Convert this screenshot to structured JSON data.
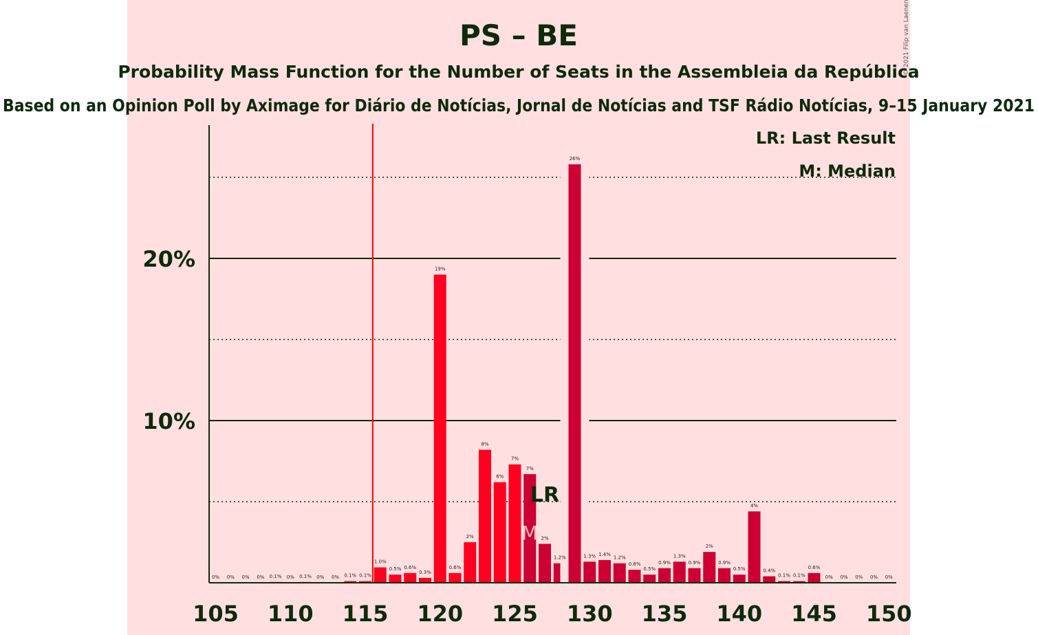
{
  "chart_data": {
    "type": "bar",
    "title": "PS – BE",
    "subtitle": "Probability Mass Function for the Number of Seats in the Assembleia da República",
    "subtitle2": "Based on an Opinion Poll by Aximage for Diário de Notícias, Jornal de Notícias and TSF Rádio Notícias, 9–15 January 2021",
    "copyright": "© 2021 Filip van Laenen",
    "x": [
      105,
      106,
      107,
      108,
      109,
      110,
      111,
      112,
      113,
      114,
      115,
      116,
      117,
      118,
      119,
      120,
      121,
      122,
      123,
      124,
      125,
      126,
      127,
      128,
      129,
      130,
      131,
      132,
      133,
      134,
      135,
      136,
      137,
      138,
      139,
      140,
      141,
      142,
      143,
      144,
      145,
      146,
      147,
      148,
      149,
      150
    ],
    "values": [
      0,
      0,
      0,
      0,
      0.05,
      0,
      0.05,
      0,
      0,
      0.1,
      0.1,
      0.95,
      0.5,
      0.6,
      0.3,
      19.0,
      0.6,
      2.5,
      8.2,
      6.2,
      7.3,
      6.7,
      2.4,
      1.2,
      25.8,
      1.3,
      1.4,
      1.2,
      0.8,
      0.5,
      0.9,
      1.3,
      0.9,
      1.9,
      0.9,
      0.5,
      4.4,
      0.4,
      0.1,
      0.1,
      0.6,
      0,
      0,
      0,
      0,
      0
    ],
    "labels": [
      "0%",
      "0%",
      "0%",
      "0%",
      "0.1%",
      "0%",
      "0.1%",
      "0%",
      "0%",
      "0.1%",
      "0.1%",
      "1.0%",
      "0.5%",
      "0.6%",
      "0.3%",
      "19%",
      "0.6%",
      "2%",
      "8%",
      "6%",
      "7%",
      "7%",
      "2%",
      "1.2%",
      "26%",
      "1.3%",
      "1.4%",
      "1.2%",
      "0.8%",
      "0.5%",
      "0.9%",
      "1.3%",
      "0.9%",
      "2%",
      "0.9%",
      "0.5%",
      "4%",
      "0.4%",
      "0.1%",
      "0.1%",
      "0.6%",
      "0%",
      "0%",
      "0%",
      "0%",
      "0%"
    ],
    "xticks": [
      105,
      110,
      115,
      120,
      125,
      130,
      135,
      140,
      145,
      150
    ],
    "yticks": [
      "10%",
      "20%"
    ],
    "ylim": [
      0,
      28
    ],
    "majority_line_x": 116,
    "last_result_x": 127,
    "median_x": 126,
    "lr_mark": "LR",
    "median_mark": "M",
    "legend": [
      "LR: Last Result",
      "M: Median"
    ],
    "colors": {
      "bar_a": "#ff0020",
      "bar_b": "#cc0033",
      "majority": "#ff0000",
      "axis": "#0d2a0d",
      "background": "#ffdfdf"
    }
  }
}
